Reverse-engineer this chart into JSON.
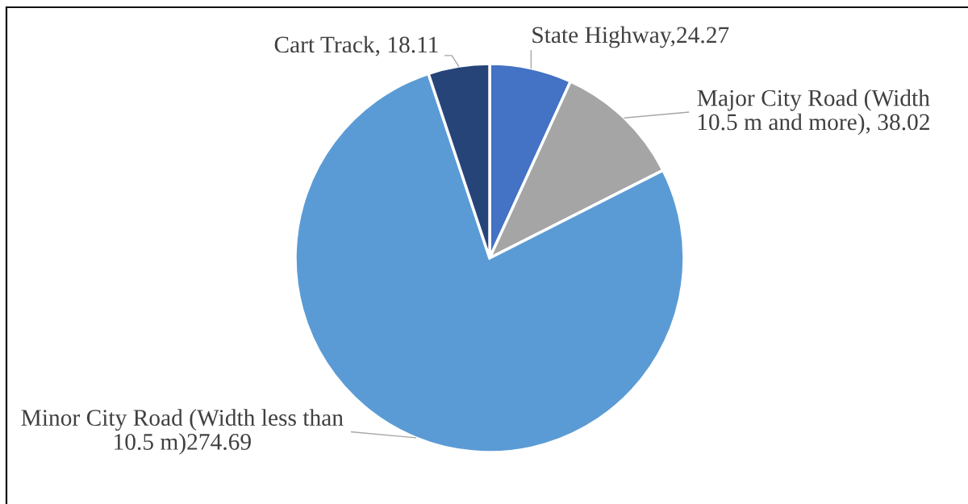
{
  "chart_data": {
    "type": "pie",
    "categories": [
      "State Highway,24.27",
      "Major City Road (Width\n10.5 m and more), 38.02",
      "Minor City Road (Width less than\n10.5 m)274.69",
      "Cart Track, 18.11"
    ],
    "values": [
      24.27,
      38.02,
      274.69,
      18.11
    ],
    "colors": [
      "#4472c4",
      "#a5a5a5",
      "#5b9bd5",
      "#264478"
    ]
  }
}
